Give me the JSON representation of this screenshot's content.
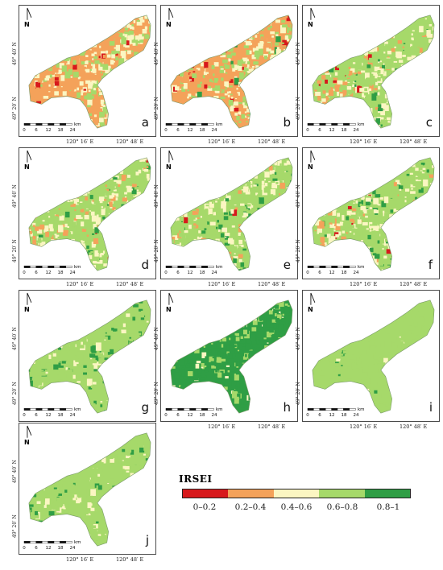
{
  "panels": [
    {
      "letter": "a",
      "mix": [
        0.06,
        0.42,
        0.33,
        0.19,
        0.0
      ]
    },
    {
      "letter": "b",
      "mix": [
        0.1,
        0.4,
        0.3,
        0.18,
        0.02
      ]
    },
    {
      "letter": "c",
      "mix": [
        0.03,
        0.2,
        0.35,
        0.38,
        0.04
      ]
    },
    {
      "letter": "d",
      "mix": [
        0.02,
        0.22,
        0.34,
        0.38,
        0.04
      ]
    },
    {
      "letter": "e",
      "mix": [
        0.01,
        0.12,
        0.35,
        0.46,
        0.06
      ]
    },
    {
      "letter": "f",
      "mix": [
        0.02,
        0.14,
        0.3,
        0.47,
        0.07
      ]
    },
    {
      "letter": "g",
      "mix": [
        0.0,
        0.0,
        0.1,
        0.72,
        0.18
      ]
    },
    {
      "letter": "h",
      "mix": [
        0.0,
        0.0,
        0.05,
        0.2,
        0.75
      ]
    },
    {
      "letter": "i",
      "mix": [
        0.0,
        0.0,
        0.03,
        0.95,
        0.02
      ]
    },
    {
      "letter": "j",
      "mix": [
        0.0,
        0.0,
        0.14,
        0.8,
        0.06
      ]
    }
  ],
  "map_labels": {
    "north": "N",
    "lon_west": "120° 16′ E",
    "lon_east": "120° 48′ E",
    "lat_north": "49° 40′ N",
    "lat_south": "49° 20′ N",
    "scale_ticks": [
      "0",
      "6",
      "12",
      "18",
      "24"
    ],
    "scale_unit": "km"
  },
  "legend": {
    "title": "IRSEI",
    "classes": [
      {
        "label": "0–0.2",
        "color": "#d7191c"
      },
      {
        "label": "0.2–0.4",
        "color": "#f4a25a"
      },
      {
        "label": "0.4–0.6",
        "color": "#fbf6c2"
      },
      {
        "label": "0.6–0.8",
        "color": "#a6d96a"
      },
      {
        "label": "0.8–1",
        "color": "#2f9e45"
      }
    ]
  }
}
